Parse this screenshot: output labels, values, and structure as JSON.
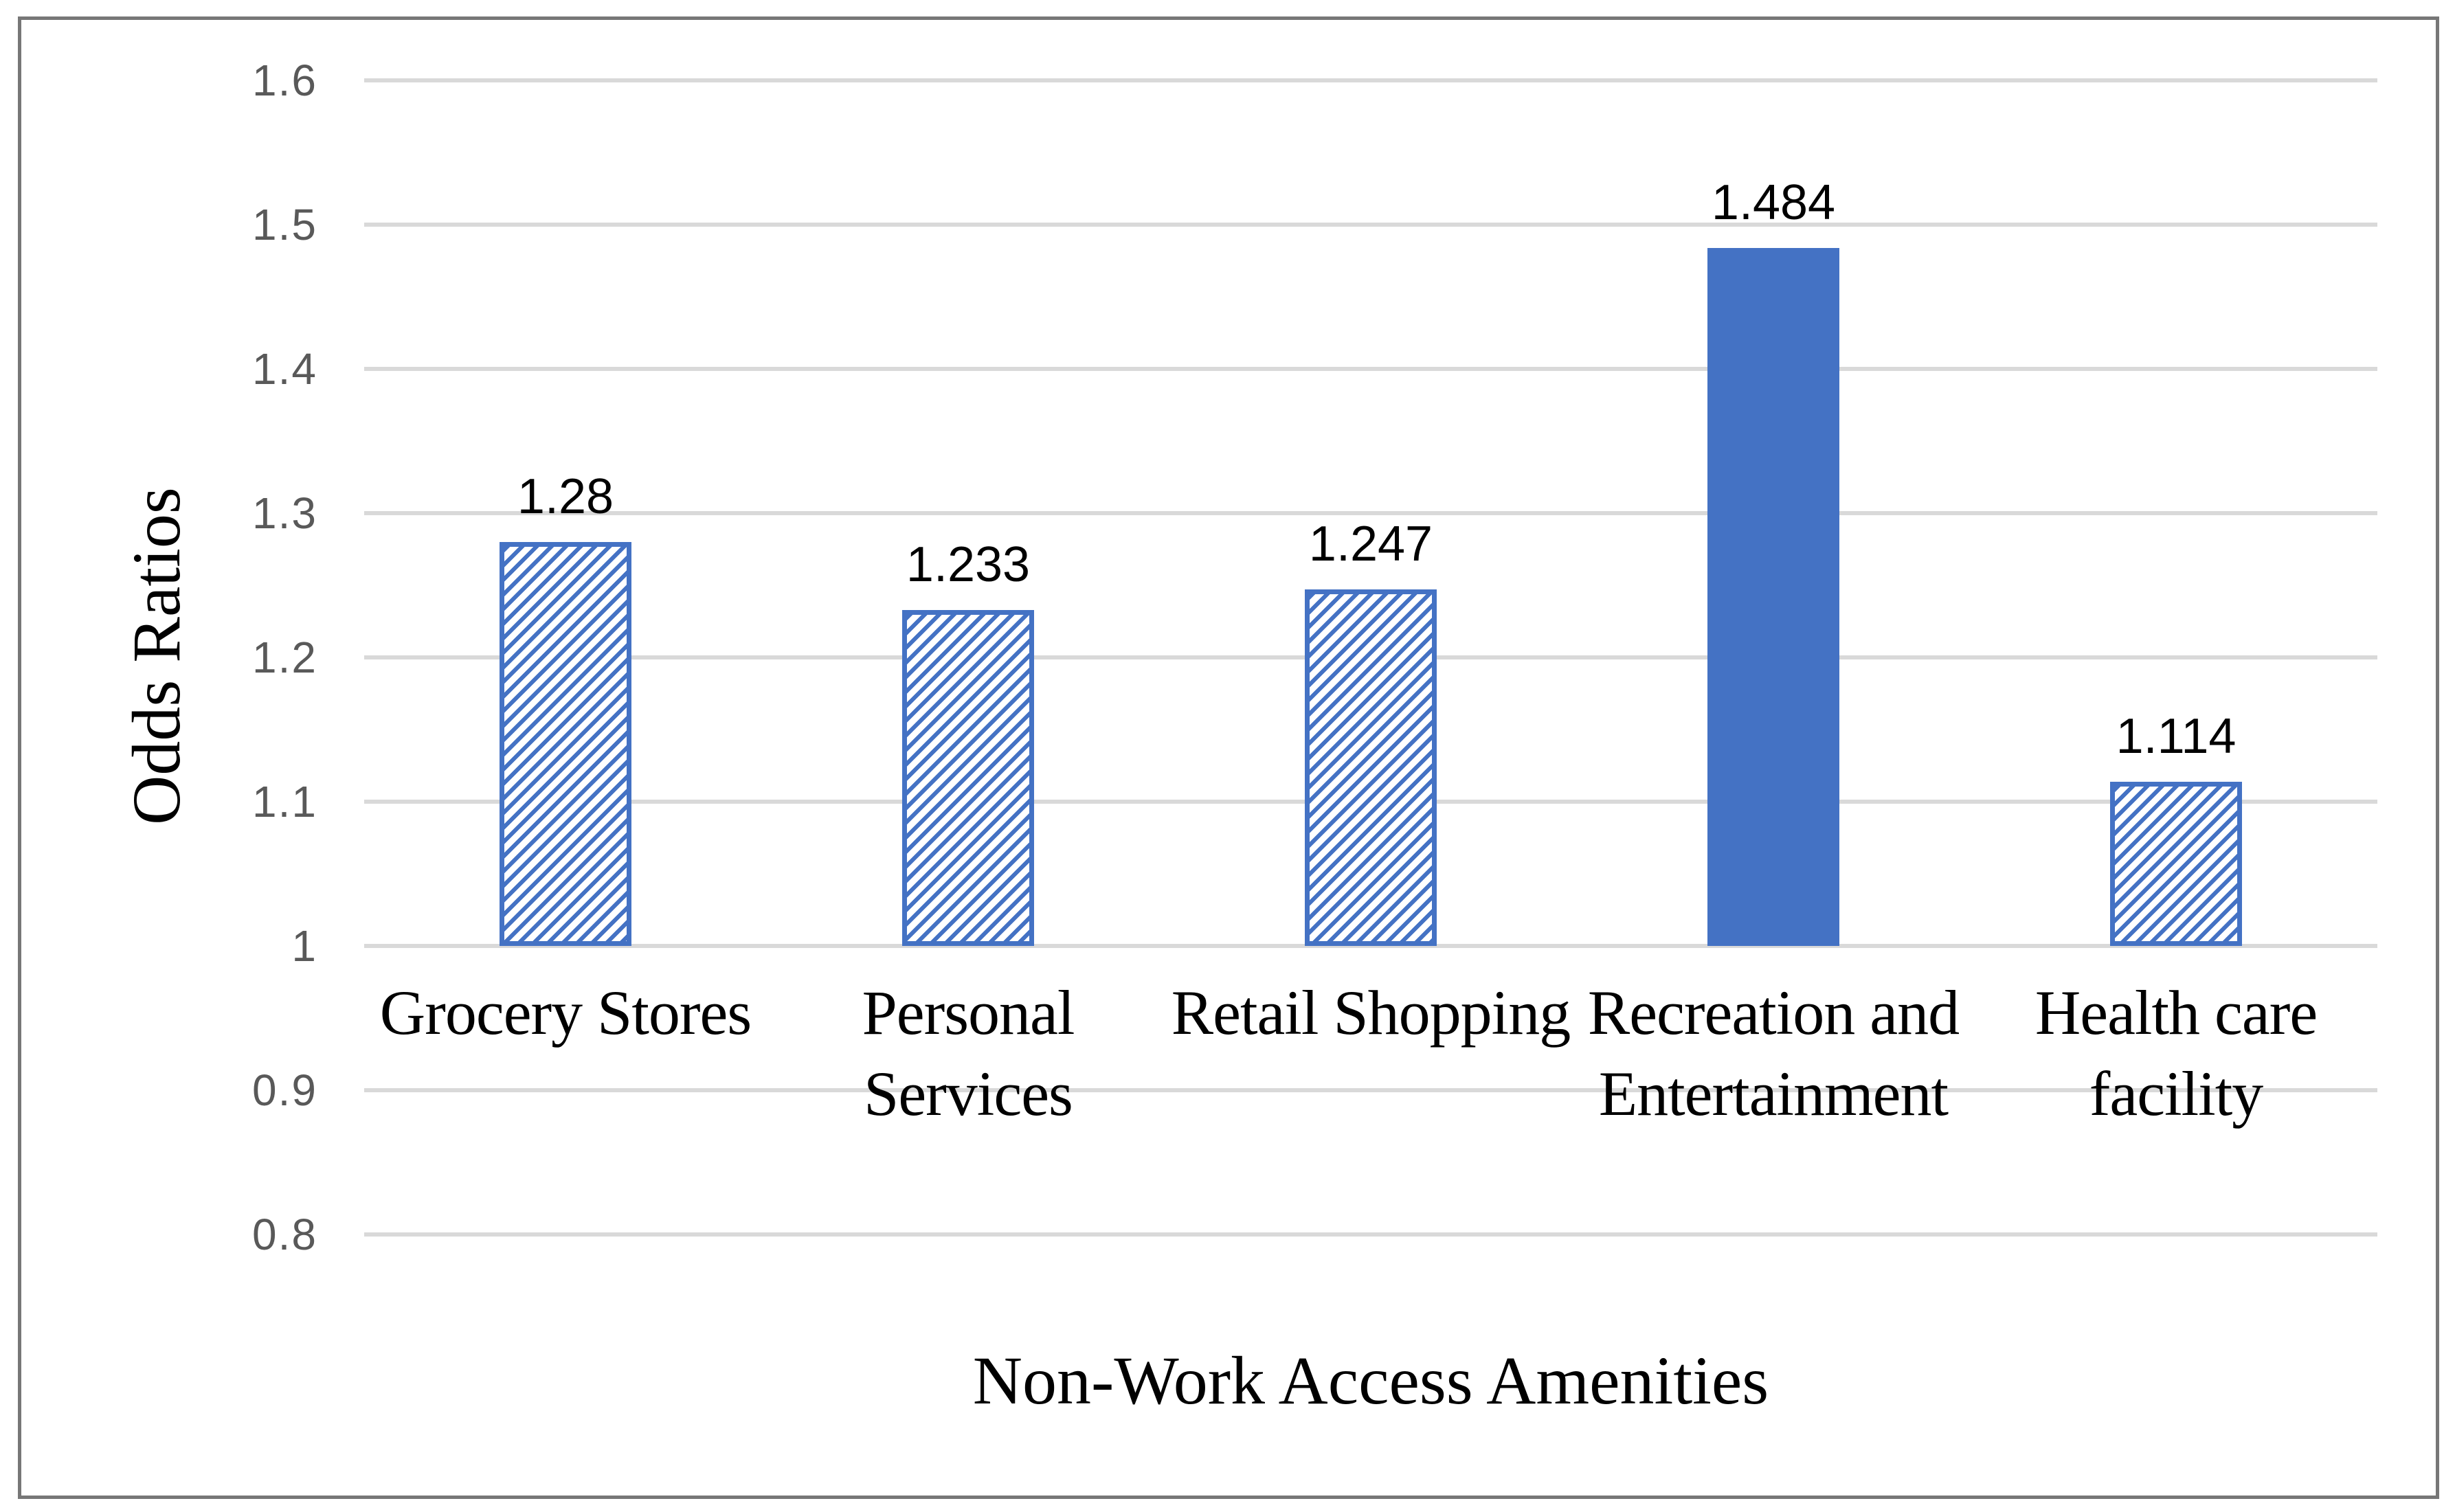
{
  "chart_data": {
    "type": "bar",
    "title": "",
    "categories": [
      "Grocery Stores",
      "Personal Services",
      "Retail Shopping",
      "Recreation and Entertainment",
      "Health care facility"
    ],
    "categories_wrapped": [
      "Grocery Stores",
      "Personal\nServices",
      "Retail Shopping",
      "Recreation and\nEntertainment",
      "Health care\nfacility"
    ],
    "values": [
      1.28,
      1.233,
      1.247,
      1.484,
      1.114
    ],
    "data_labels": [
      "1.28",
      "1.233",
      "1.247",
      "1.484",
      "1.114"
    ],
    "bar_fill_styles": [
      "diagonal-hatch",
      "diagonal-hatch",
      "diagonal-hatch",
      "solid",
      "diagonal-hatch"
    ],
    "xlabel": "Non-Work Access Amenities",
    "ylabel": "Odds Ratios",
    "ylim": [
      0.8,
      1.6
    ],
    "bar_baseline": 1,
    "yticks": [
      {
        "value": 1.6,
        "label": "1.6"
      },
      {
        "value": 1.5,
        "label": "1.5"
      },
      {
        "value": 1.4,
        "label": "1.4"
      },
      {
        "value": 1.3,
        "label": "1.3"
      },
      {
        "value": 1.2,
        "label": "1.2"
      },
      {
        "value": 1.1,
        "label": "1.1"
      },
      {
        "value": 1.0,
        "label": "1"
      },
      {
        "value": 0.9,
        "label": "0.9"
      },
      {
        "value": 0.8,
        "label": "0.8"
      }
    ],
    "grid": "horizontal",
    "legend": "none",
    "colors": {
      "bar_blue": "#4472C4",
      "gridline": "#D9D9D9",
      "tick_label": "#595959",
      "axis_text": "#000000",
      "frame_border": "#777777",
      "background": "#FFFFFF"
    }
  }
}
